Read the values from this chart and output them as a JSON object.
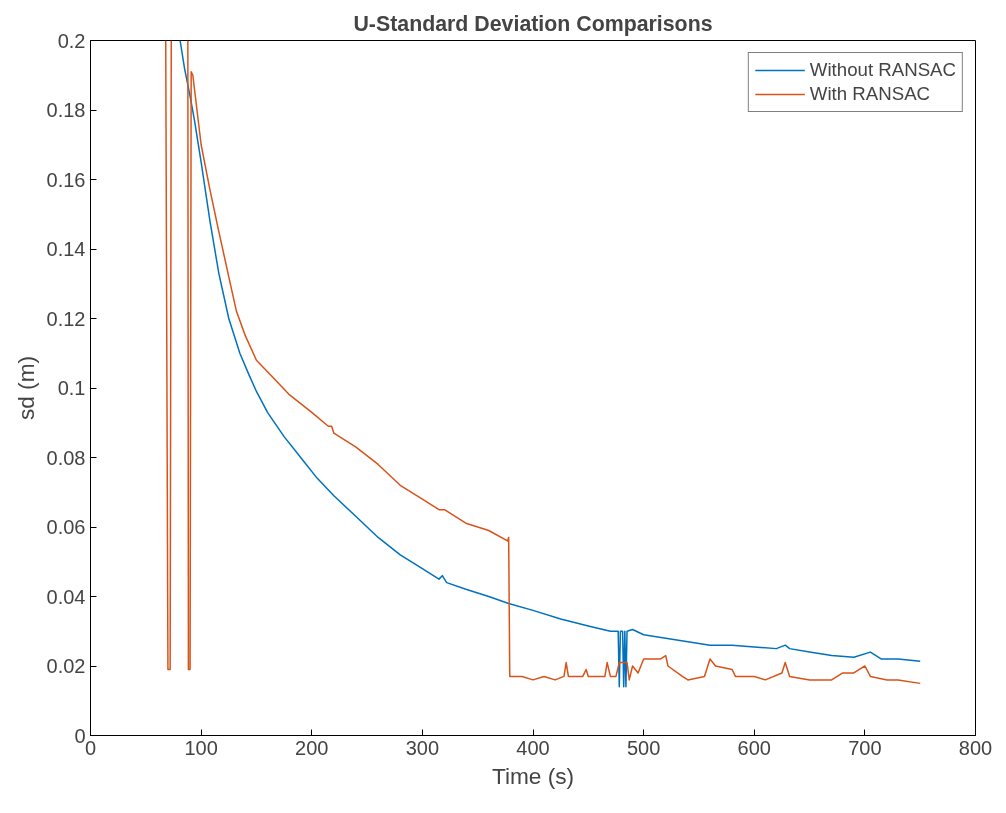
{
  "chart_data": {
    "type": "line",
    "title": "U-Standard Deviation Comparisons",
    "xlabel": "Time (s)",
    "ylabel": "sd (m)",
    "xlim": [
      0,
      800
    ],
    "ylim": [
      0,
      0.2
    ],
    "xticks": [
      0,
      100,
      200,
      300,
      400,
      500,
      600,
      700,
      800
    ],
    "yticks": [
      0,
      0.02,
      0.04,
      0.06,
      0.08,
      0.1,
      0.12,
      0.14,
      0.16,
      0.18,
      0.2
    ],
    "grid": false,
    "legend": "top right",
    "marker": "none",
    "line_style": "solid",
    "series": [
      {
        "name": "Without RANSAC",
        "color": "#0072bd",
        "x": [
          81,
          85,
          90,
          94,
          100,
          108,
          116,
          125,
          135,
          143,
          150,
          160,
          175,
          190,
          205,
          220,
          240,
          260,
          280,
          300,
          315,
          318,
          322,
          340,
          360,
          378,
          400,
          425,
          450,
          470,
          477,
          478,
          479,
          481,
          482,
          483,
          484,
          485,
          490,
          500,
          520,
          540,
          560,
          580,
          600,
          620,
          628,
          632,
          650,
          670,
          690,
          705,
          715,
          730,
          750
        ],
        "values": [
          0.2,
          0.192,
          0.184,
          0.177,
          0.165,
          0.148,
          0.133,
          0.12,
          0.11,
          0.104,
          0.099,
          0.093,
          0.086,
          0.08,
          0.074,
          0.069,
          0.063,
          0.057,
          0.052,
          0.048,
          0.045,
          0.046,
          0.044,
          0.042,
          0.04,
          0.038,
          0.036,
          0.0335,
          0.0315,
          0.03,
          0.03,
          0.014,
          0.03,
          0.03,
          0.014,
          0.03,
          0.014,
          0.03,
          0.0305,
          0.029,
          0.028,
          0.027,
          0.026,
          0.026,
          0.0255,
          0.025,
          0.026,
          0.025,
          0.024,
          0.023,
          0.0225,
          0.024,
          0.022,
          0.022,
          0.0214
        ]
      },
      {
        "name": "With RANSAC",
        "color": "#d95319",
        "x": [
          68,
          70,
          72,
          73,
          80,
          88,
          88.5,
          90,
          91,
          92.5,
          100,
          108,
          116,
          125,
          132,
          140,
          150,
          165,
          180,
          200,
          215,
          218,
          220,
          240,
          260,
          280,
          300,
          315,
          320,
          325,
          340,
          360,
          377,
          378,
          379,
          390,
          400,
          410,
          420,
          428,
          430,
          432,
          445,
          448,
          450,
          465,
          467,
          470,
          475,
          478,
          485,
          487,
          490,
          495,
          500,
          515,
          520,
          522,
          535,
          540,
          555,
          560,
          565,
          580,
          583,
          600,
          610,
          625,
          628,
          632,
          650,
          670,
          680,
          690,
          695,
          700,
          705,
          720,
          730,
          750
        ],
        "values": [
          0.2,
          0.019,
          0.019,
          0.2,
          null,
          0.2,
          0.019,
          0.019,
          0.191,
          0.19,
          0.17,
          0.157,
          0.145,
          0.132,
          0.122,
          0.115,
          0.108,
          0.103,
          0.098,
          0.093,
          0.089,
          0.089,
          0.087,
          0.083,
          0.078,
          0.072,
          0.068,
          0.065,
          0.065,
          0.064,
          0.061,
          0.059,
          0.056,
          0.057,
          0.017,
          0.017,
          0.016,
          0.017,
          0.016,
          0.017,
          0.021,
          0.017,
          0.017,
          0.019,
          0.017,
          0.017,
          0.021,
          0.017,
          0.017,
          0.021,
          0.021,
          0.016,
          0.02,
          0.018,
          0.022,
          0.022,
          0.023,
          0.02,
          0.017,
          0.016,
          0.017,
          0.022,
          0.02,
          0.019,
          0.017,
          0.017,
          0.016,
          0.018,
          0.021,
          0.017,
          0.016,
          0.016,
          0.018,
          0.018,
          0.019,
          0.02,
          0.017,
          0.016,
          0.016,
          0.015
        ]
      }
    ]
  }
}
